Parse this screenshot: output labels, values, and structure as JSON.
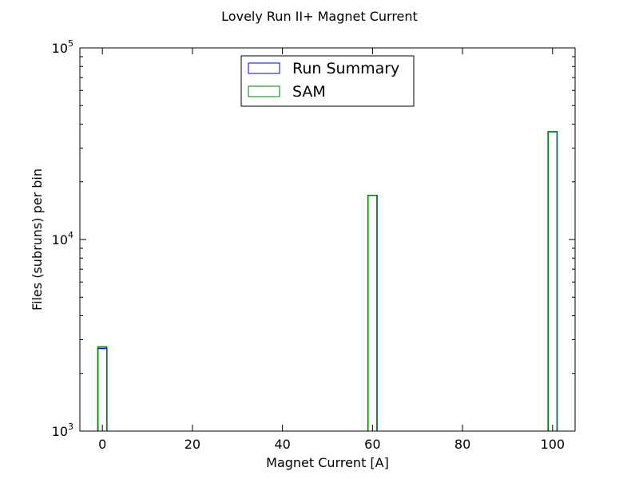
{
  "chart_data": {
    "type": "bar",
    "title": "Lovely Run II+ Magnet Current",
    "xlabel": "Magnet Current [A]",
    "ylabel": "Files (subruns) per bin",
    "xlim": [
      -5,
      105
    ],
    "ylim": [
      1000,
      100000
    ],
    "yscale": "log",
    "grid": false,
    "legend_position": "top-center",
    "xticks": [
      0,
      20,
      40,
      60,
      80,
      100
    ],
    "xtick_labels": [
      "0",
      "20",
      "40",
      "60",
      "80",
      "100"
    ],
    "yticks": [
      1000,
      10000,
      100000
    ],
    "ytick_labels": [
      {
        "base": "10",
        "exp": "3"
      },
      {
        "base": "10",
        "exp": "4"
      },
      {
        "base": "10",
        "exp": "5"
      }
    ],
    "bin_width": 2,
    "histtype": "step",
    "series": [
      {
        "name": "Run Summary",
        "color": "#0000ff",
        "bins": [
          {
            "x0": -1,
            "x1": 1,
            "value": 2700
          },
          {
            "x0": 59,
            "x1": 61,
            "value": 17000
          },
          {
            "x0": 99,
            "x1": 101,
            "value": 36500
          }
        ]
      },
      {
        "name": "SAM",
        "color": "#008000",
        "bins": [
          {
            "x0": -1,
            "x1": 1,
            "value": 2750
          },
          {
            "x0": 59,
            "x1": 61,
            "value": 17000
          },
          {
            "x0": 99,
            "x1": 101,
            "value": 36500
          }
        ]
      }
    ]
  }
}
